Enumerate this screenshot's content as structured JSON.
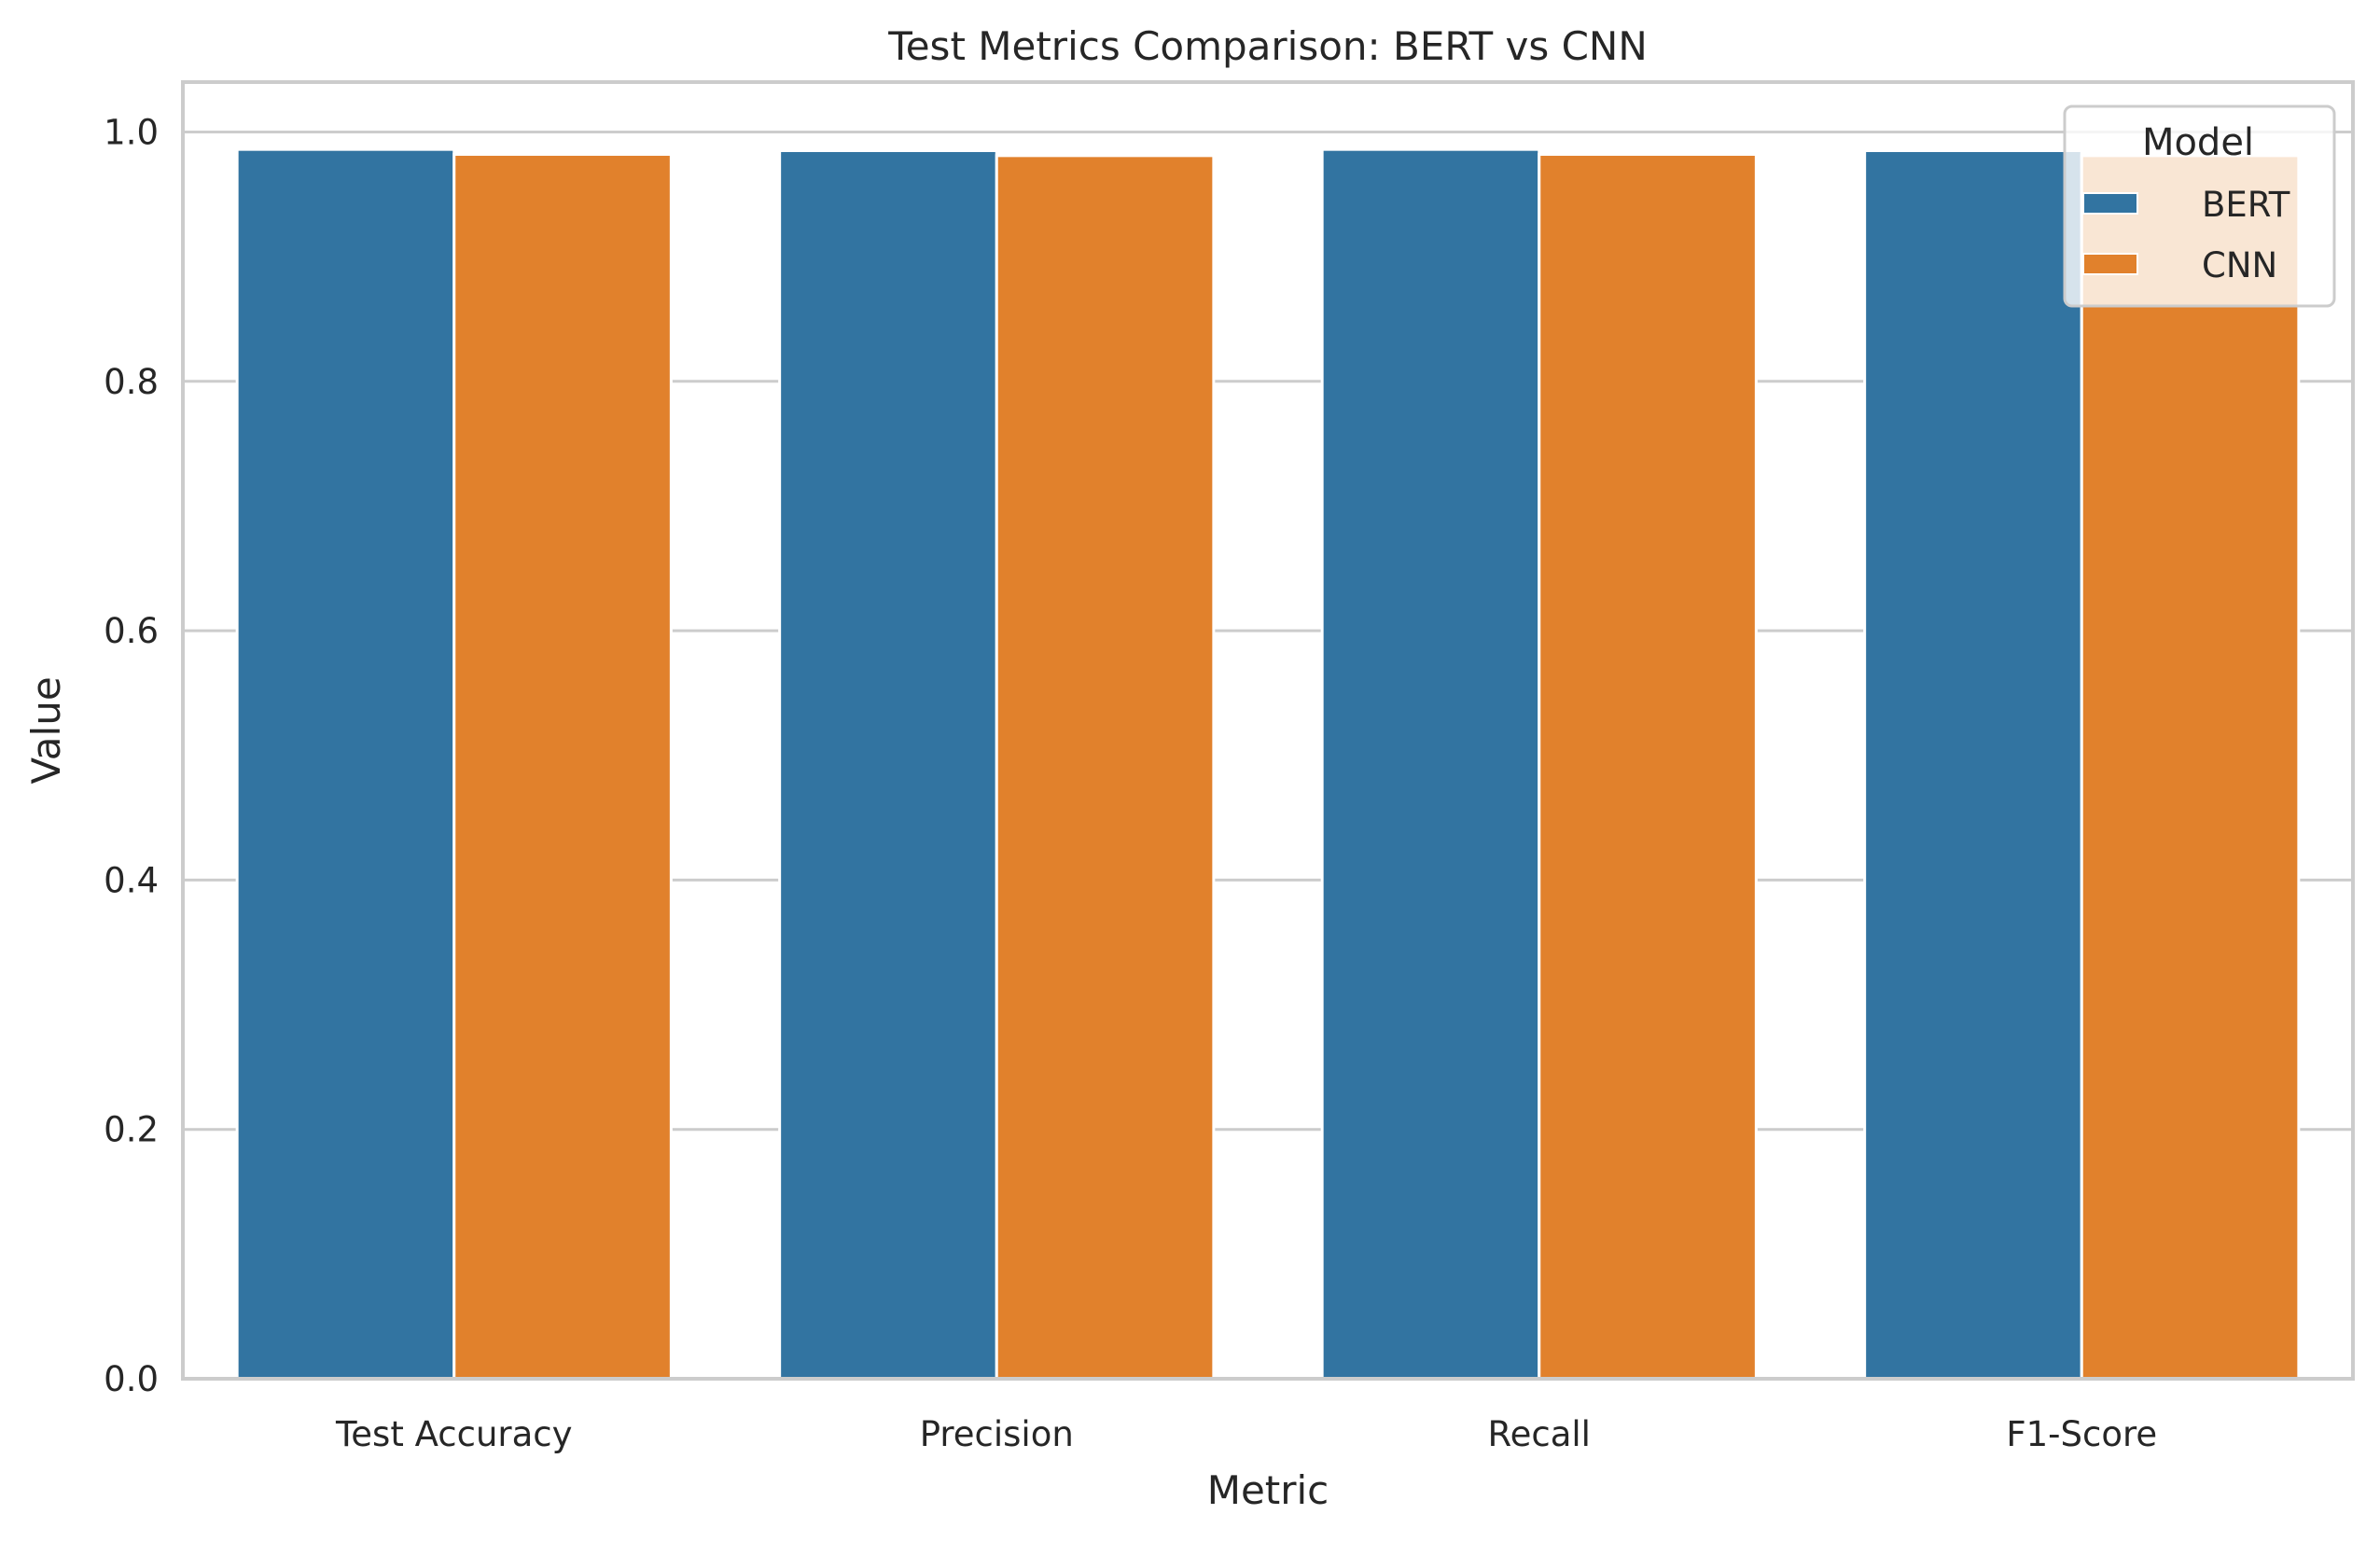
{
  "chart_data": {
    "type": "bar",
    "title": "Test Metrics Comparison: BERT vs CNN",
    "xlabel": "Metric",
    "ylabel": "Value",
    "categories": [
      "Test Accuracy",
      "Precision",
      "Recall",
      "F1-Score"
    ],
    "series": [
      {
        "name": "BERT",
        "color": "#3274a1",
        "values": [
          0.986,
          0.985,
          0.986,
          0.985
        ]
      },
      {
        "name": "CNN",
        "color": "#e1812c",
        "values": [
          0.982,
          0.981,
          0.982,
          0.981
        ]
      }
    ],
    "ylim": [
      0,
      1.04
    ],
    "yticks": [
      "0.0",
      "0.2",
      "0.4",
      "0.6",
      "0.8",
      "1.0"
    ],
    "ytick_values": [
      0,
      0.2,
      0.4,
      0.6,
      0.8,
      1.0
    ],
    "grid": true,
    "grid_axis": "y",
    "legend": {
      "title": "Model",
      "placement": "top-right"
    }
  }
}
